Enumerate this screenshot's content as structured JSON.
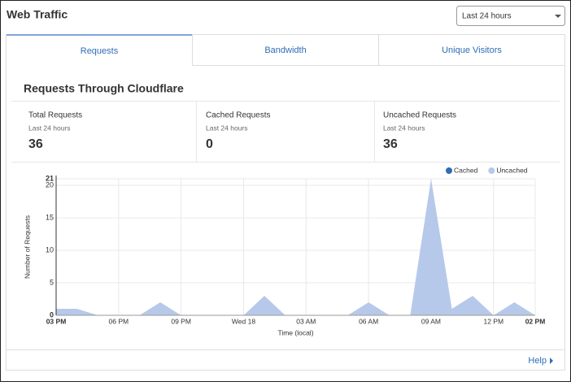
{
  "header": {
    "title": "Web Traffic",
    "range_select": "Last 24 hours"
  },
  "tabs": [
    "Requests",
    "Bandwidth",
    "Unique Visitors"
  ],
  "panel_title": "Requests Through Cloudflare",
  "stats": [
    {
      "label": "Total Requests",
      "period": "Last 24 hours",
      "value": 36
    },
    {
      "label": "Cached Requests",
      "period": "Last 24 hours",
      "value": 0
    },
    {
      "label": "Uncached Requests",
      "period": "Last 24 hours",
      "value": 36
    }
  ],
  "chart_data": {
    "type": "area",
    "x_label": "Time (local)",
    "y_label": "Number of Requests",
    "categories": [
      "03 PM",
      null,
      null,
      "06 PM",
      null,
      null,
      "09 PM",
      null,
      null,
      "Wed 18",
      null,
      null,
      "03 AM",
      null,
      null,
      "06 AM",
      null,
      null,
      "09 AM",
      null,
      null,
      "12 PM",
      null,
      "02 PM"
    ],
    "series": [
      {
        "name": "Cached",
        "color": "#2f6db5",
        "values": [
          0,
          0,
          0,
          0,
          0,
          0,
          0,
          0,
          0,
          0,
          0,
          0,
          0,
          0,
          0,
          0,
          0,
          0,
          0,
          0,
          0,
          0,
          0,
          0
        ]
      },
      {
        "name": "Uncached",
        "color": "#b7c9ea",
        "values": [
          1,
          1,
          0,
          0,
          0,
          2,
          0,
          0,
          0,
          0,
          3,
          0,
          0,
          0,
          0,
          2,
          0,
          0,
          21,
          1,
          3,
          0,
          2,
          0
        ]
      }
    ],
    "ylim": [
      0,
      21
    ],
    "yticks": [
      0,
      5,
      10,
      15,
      20,
      21
    ],
    "grid": true,
    "legend": "top-right"
  },
  "footer": {
    "help": "Help"
  }
}
